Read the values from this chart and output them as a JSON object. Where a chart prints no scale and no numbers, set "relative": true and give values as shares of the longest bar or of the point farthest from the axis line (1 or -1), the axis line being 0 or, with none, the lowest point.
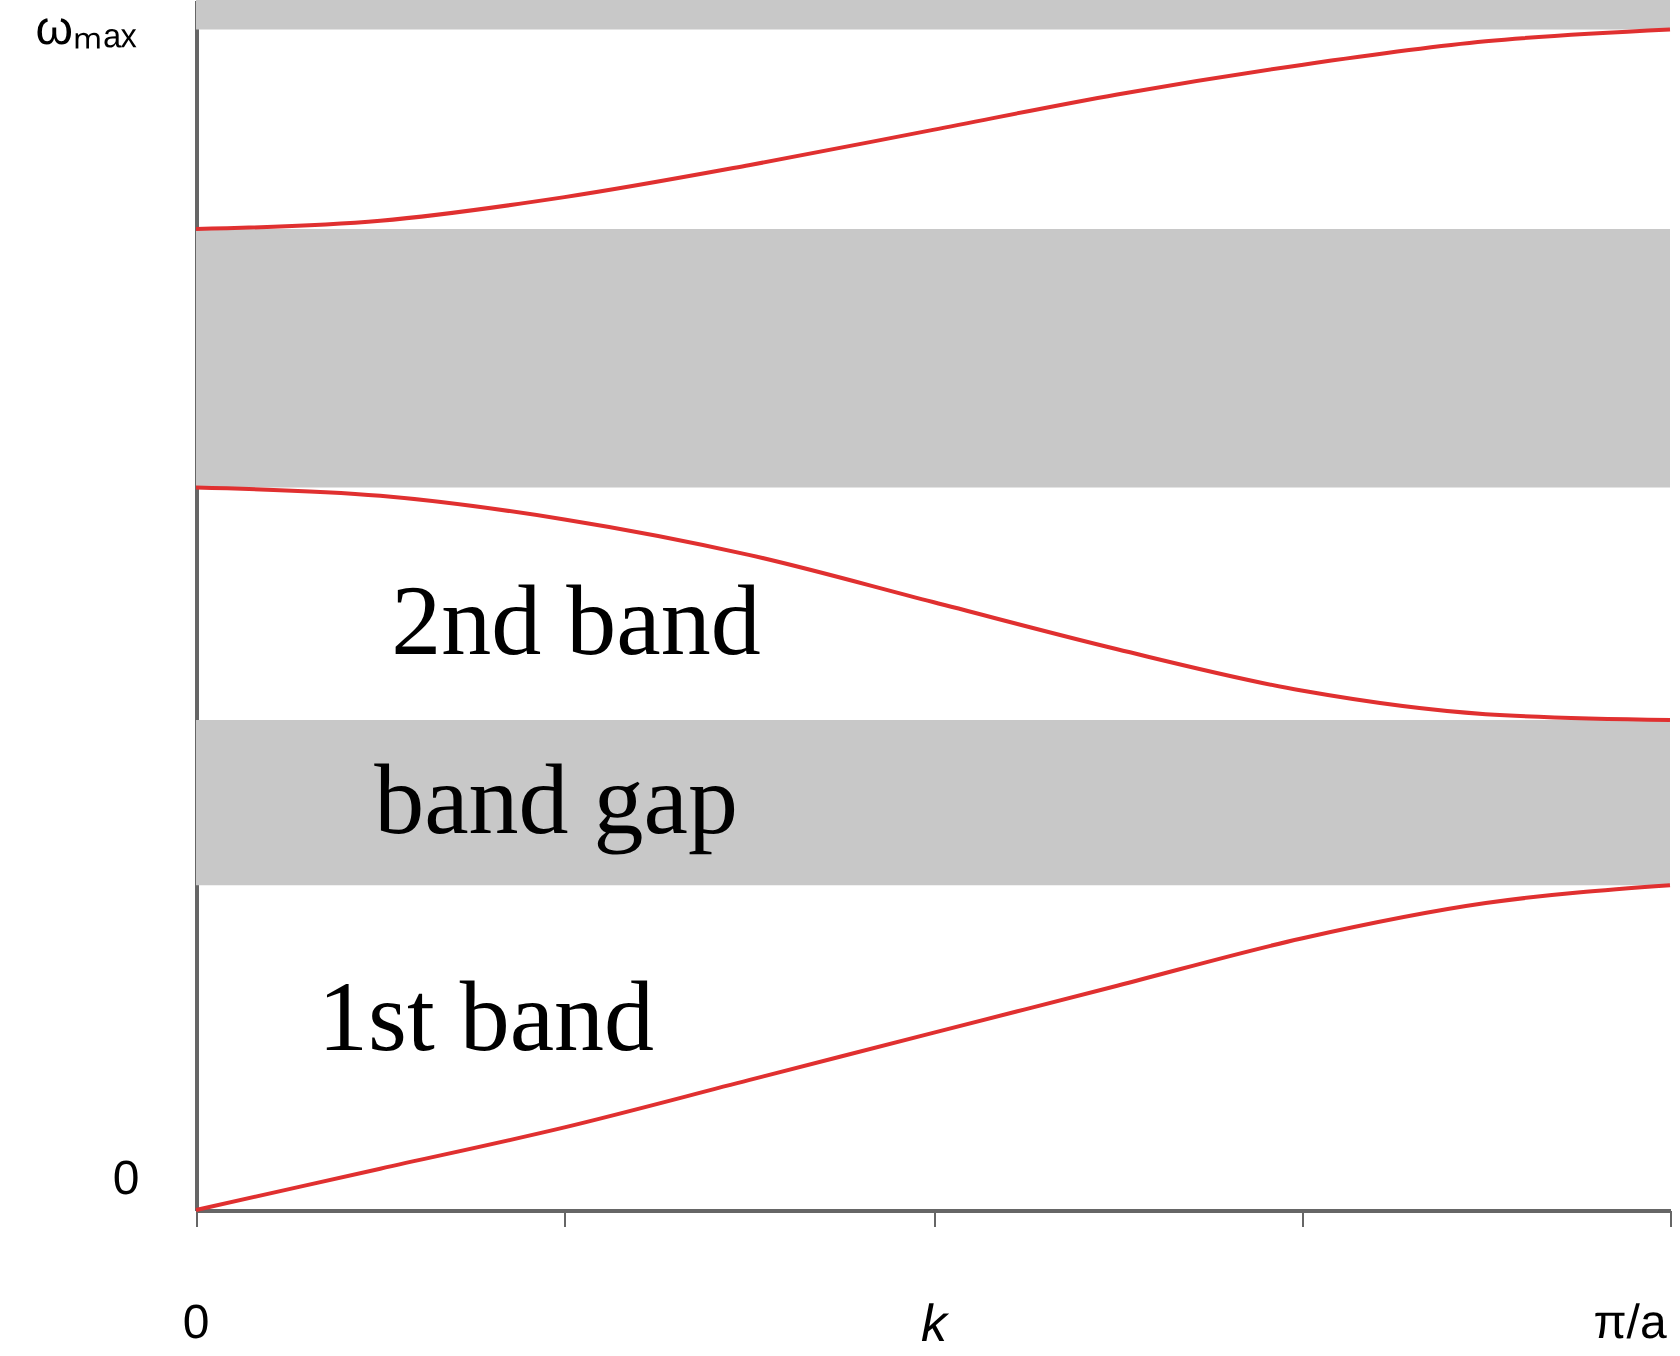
{
  "chart_data": {
    "type": "line",
    "xlabel": "k",
    "relative": true,
    "categories": [
      null,
      null,
      null,
      null,
      null,
      null,
      null,
      null,
      null
    ],
    "series": [
      {
        "color": "#e03030",
        "values": [
          0,
          0.035,
          0.07,
          0.11,
          0.15,
          0.19,
          0.23,
          0.26,
          0.275
        ]
      },
      {
        "color": "#e03030",
        "values": [
          0.612,
          0.605,
          0.585,
          0.555,
          0.515,
          0.475,
          0.44,
          0.42,
          0.415
        ]
      },
      {
        "color": "#e03030",
        "values": [
          0.831,
          0.838,
          0.858,
          0.885,
          0.915,
          0.945,
          0.97,
          0.99,
          1.0
        ]
      }
    ],
    "bands": [
      {
        "axis": "y",
        "from": 0.275,
        "to": 0.415,
        "label": "band gap",
        "color": "#c8c8c8"
      },
      {
        "axis": "y",
        "from": 0.612,
        "to": 0.831,
        "color": "#c8c8c8"
      },
      {
        "axis": "y",
        "from": 1.0,
        "to": 1.025,
        "color": "#c8c8c8"
      }
    ],
    "annotations": [
      "2nd band",
      "1st band",
      "0",
      "ωₘₐₓ",
      "0",
      "π/a"
    ],
    "grid": false,
    "marker": "none",
    "line_style": "solid"
  }
}
